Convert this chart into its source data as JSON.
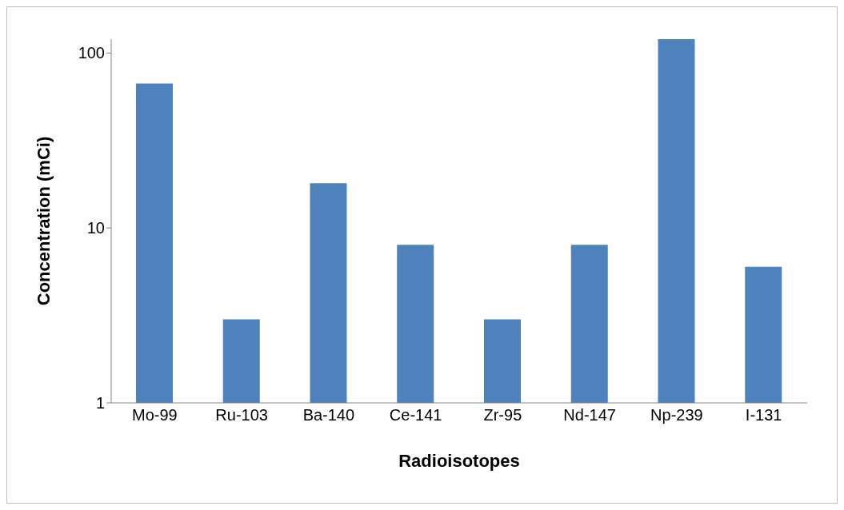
{
  "chart_data": {
    "type": "bar",
    "xlabel": "Radioisotopes",
    "ylabel": "Concentration (mCi)",
    "categories": [
      "Mo-99",
      "Ru-103",
      "Ba-140",
      "Ce-141",
      "Zr-95",
      "Nd-147",
      "Np-239",
      "I-131"
    ],
    "values": [
      67,
      3,
      18,
      8,
      3,
      8,
      120,
      6
    ],
    "color": "#4f81bd",
    "log": true,
    "ylim": [
      1,
      120
    ],
    "yticks": [
      1,
      10,
      100
    ],
    "grid": false,
    "legend": false
  }
}
